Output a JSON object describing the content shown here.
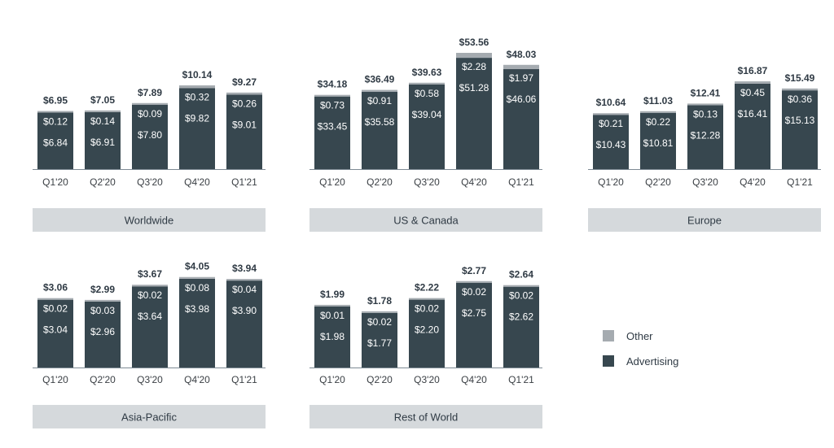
{
  "colors": {
    "advertising": "#37474f",
    "other": "#a5abb0",
    "panel_band": "#d5d9dc",
    "axis": "#7d8a94"
  },
  "legend": [
    {
      "key": "other",
      "label": "Other",
      "icon": "square-swatch-light-gray"
    },
    {
      "key": "advertising",
      "label": "Advertising",
      "icon": "square-swatch-dark-slate"
    }
  ],
  "chart_data": [
    {
      "type": "bar",
      "stacked": true,
      "title": "Worldwide",
      "categories": [
        "Q1'20",
        "Q2'20",
        "Q3'20",
        "Q4'20",
        "Q1'21"
      ],
      "series": [
        {
          "name": "Advertising",
          "values": [
            6.84,
            6.91,
            7.8,
            9.82,
            9.01
          ],
          "labels": [
            "$6.84",
            "$6.91",
            "$7.80",
            "$9.82",
            "$9.01"
          ]
        },
        {
          "name": "Other",
          "values": [
            0.12,
            0.14,
            0.09,
            0.32,
            0.26
          ],
          "labels": [
            "$0.12",
            "$0.14",
            "$0.09",
            "$0.32",
            "$0.26"
          ]
        }
      ],
      "totals": [
        6.95,
        7.05,
        7.89,
        10.14,
        9.27
      ],
      "total_labels": [
        "$6.95",
        "$7.05",
        "$7.89",
        "$10.14",
        "$9.27"
      ]
    },
    {
      "type": "bar",
      "stacked": true,
      "title": "US & Canada",
      "categories": [
        "Q1'20",
        "Q2'20",
        "Q3'20",
        "Q4'20",
        "Q1'21"
      ],
      "series": [
        {
          "name": "Advertising",
          "values": [
            33.45,
            35.58,
            39.04,
            51.28,
            46.06
          ],
          "labels": [
            "$33.45",
            "$35.58",
            "$39.04",
            "$51.28",
            "$46.06"
          ]
        },
        {
          "name": "Other",
          "values": [
            0.73,
            0.91,
            0.58,
            2.28,
            1.97
          ],
          "labels": [
            "$0.73",
            "$0.91",
            "$0.58",
            "$2.28",
            "$1.97"
          ]
        }
      ],
      "totals": [
        34.18,
        36.49,
        39.63,
        53.56,
        48.03
      ],
      "total_labels": [
        "$34.18",
        "$36.49",
        "$39.63",
        "$53.56",
        "$48.03"
      ]
    },
    {
      "type": "bar",
      "stacked": true,
      "title": "Europe",
      "categories": [
        "Q1'20",
        "Q2'20",
        "Q3'20",
        "Q4'20",
        "Q1'21"
      ],
      "series": [
        {
          "name": "Advertising",
          "values": [
            10.43,
            10.81,
            12.28,
            16.41,
            15.13
          ],
          "labels": [
            "$10.43",
            "$10.81",
            "$12.28",
            "$16.41",
            "$15.13"
          ]
        },
        {
          "name": "Other",
          "values": [
            0.21,
            0.22,
            0.13,
            0.45,
            0.36
          ],
          "labels": [
            "$0.21",
            "$0.22",
            "$0.13",
            "$0.45",
            "$0.36"
          ]
        }
      ],
      "totals": [
        10.64,
        11.03,
        12.41,
        16.87,
        15.49
      ],
      "total_labels": [
        "$10.64",
        "$11.03",
        "$12.41",
        "$16.87",
        "$15.49"
      ]
    },
    {
      "type": "bar",
      "stacked": true,
      "title": "Asia-Pacific",
      "categories": [
        "Q1'20",
        "Q2'20",
        "Q3'20",
        "Q4'20",
        "Q1'21"
      ],
      "series": [
        {
          "name": "Advertising",
          "values": [
            3.04,
            2.96,
            3.64,
            3.98,
            3.9
          ],
          "labels": [
            "$3.04",
            "$2.96",
            "$3.64",
            "$3.98",
            "$3.90"
          ]
        },
        {
          "name": "Other",
          "values": [
            0.02,
            0.03,
            0.02,
            0.08,
            0.04
          ],
          "labels": [
            "$0.02",
            "$0.03",
            "$0.02",
            "$0.08",
            "$0.04"
          ]
        }
      ],
      "totals": [
        3.06,
        2.99,
        3.67,
        4.05,
        3.94
      ],
      "total_labels": [
        "$3.06",
        "$2.99",
        "$3.67",
        "$4.05",
        "$3.94"
      ]
    },
    {
      "type": "bar",
      "stacked": true,
      "title": "Rest of World",
      "categories": [
        "Q1'20",
        "Q2'20",
        "Q3'20",
        "Q4'20",
        "Q1'21"
      ],
      "series": [
        {
          "name": "Advertising",
          "values": [
            1.98,
            1.77,
            2.2,
            2.75,
            2.62
          ],
          "labels": [
            "$1.98",
            "$1.77",
            "$2.20",
            "$2.75",
            "$2.62"
          ]
        },
        {
          "name": "Other",
          "values": [
            0.01,
            0.02,
            0.02,
            0.02,
            0.02
          ],
          "labels": [
            "$0.01",
            "$0.02",
            "$0.02",
            "$0.02",
            "$0.02"
          ]
        }
      ],
      "totals": [
        1.99,
        1.78,
        2.22,
        2.77,
        2.64
      ],
      "total_labels": [
        "$1.99",
        "$1.78",
        "$2.22",
        "$2.77",
        "$2.64"
      ]
    }
  ]
}
